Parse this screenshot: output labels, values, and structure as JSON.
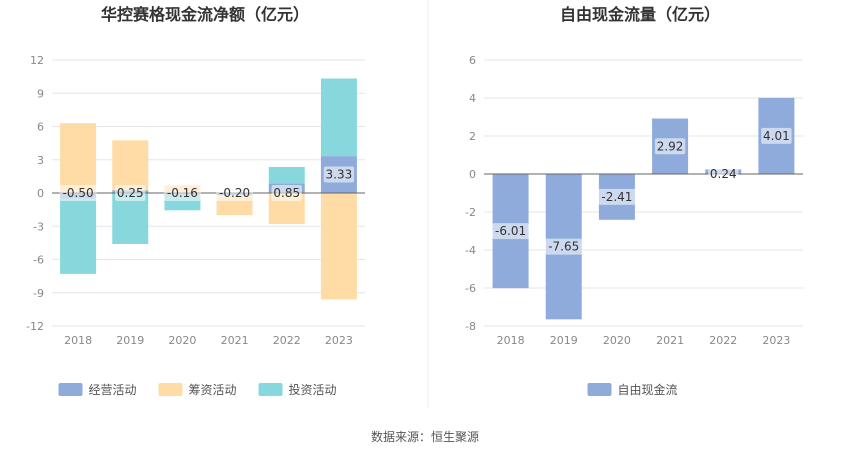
{
  "colors": {
    "operating": "#8eabdb",
    "financing": "#ffdca6",
    "investing": "#86d8dc",
    "freecash": "#8eabdb",
    "axis": "#666666",
    "grid": "#e6e6e6",
    "label": "#333333"
  },
  "chart_data": [
    {
      "type": "bar",
      "stacked": true,
      "title": "华控赛格现金流净额（亿元）",
      "categories": [
        "2018",
        "2019",
        "2020",
        "2021",
        "2022",
        "2023"
      ],
      "series": [
        {
          "name": "经营活动",
          "color_key": "operating",
          "values": [
            -0.5,
            0.25,
            -0.16,
            -0.2,
            0.85,
            3.33
          ],
          "labeled": true
        },
        {
          "name": "筹资活动",
          "color_key": "financing",
          "values": [
            6.3,
            4.5,
            0.7,
            -1.8,
            -2.8,
            -9.6
          ],
          "labeled": false
        },
        {
          "name": "投资活动",
          "color_key": "investing",
          "values": [
            -6.8,
            -4.6,
            -1.4,
            0.05,
            1.5,
            7.0
          ],
          "labeled": false
        }
      ],
      "value_labels": [
        "-0.50",
        "0.25",
        "-0.16",
        "-0.20",
        "0.85",
        "3.33"
      ],
      "yticks": [
        12,
        9,
        6,
        3,
        0,
        -3,
        -6,
        -9,
        -12
      ],
      "ylim": [
        -12,
        12
      ],
      "legend": [
        "经营活动",
        "筹资活动",
        "投资活动"
      ],
      "legend_position": "bottom"
    },
    {
      "type": "bar",
      "title": "自由现金流量（亿元）",
      "categories": [
        "2018",
        "2019",
        "2020",
        "2021",
        "2022",
        "2023"
      ],
      "series": [
        {
          "name": "自由现金流",
          "color_key": "freecash",
          "values": [
            -6.01,
            -7.65,
            -2.41,
            2.92,
            0.24,
            4.01
          ]
        }
      ],
      "value_labels": [
        "-6.01",
        "-7.65",
        "-2.41",
        "2.92",
        "0.24",
        "4.01"
      ],
      "yticks": [
        6,
        4,
        2,
        0,
        -2,
        -4,
        -6,
        -8
      ],
      "ylim": [
        -8,
        6
      ],
      "legend": [
        "自由现金流"
      ],
      "legend_position": "bottom"
    }
  ],
  "footer": {
    "source": "数据来源：恒生聚源"
  }
}
